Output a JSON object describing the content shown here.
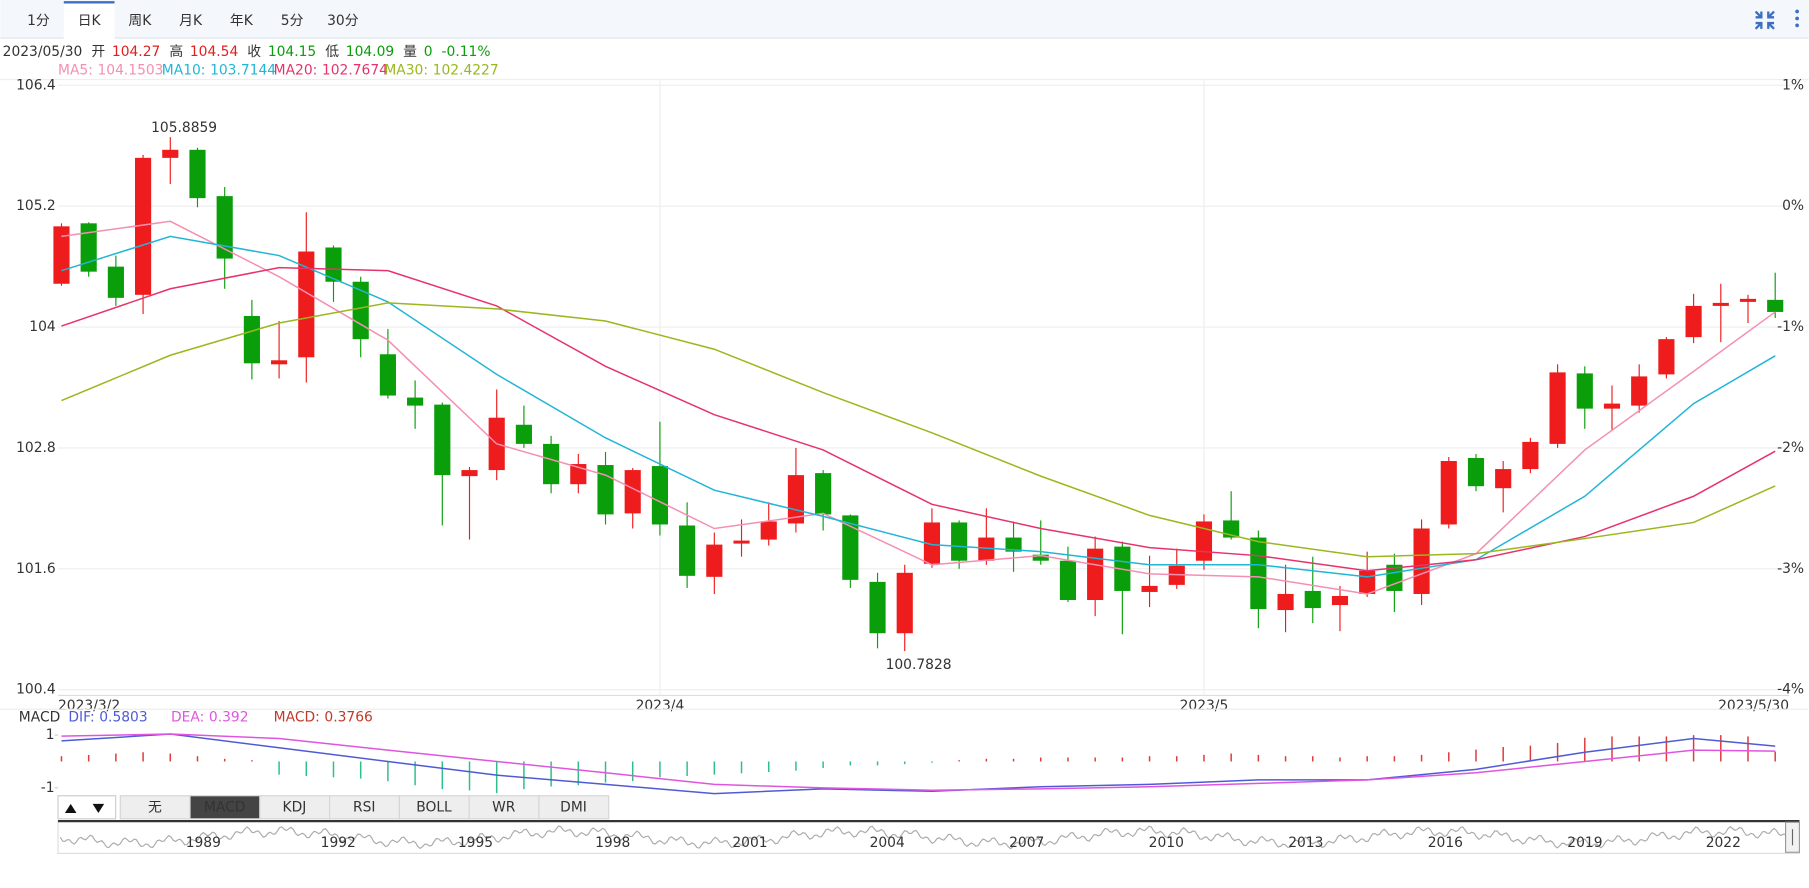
{
  "tabs": [
    "1分",
    "日K",
    "周K",
    "月K",
    "年K",
    "5分",
    "30分"
  ],
  "active_tab": 1,
  "header": {
    "date": "2023/05/30",
    "labels": [
      "开",
      "高",
      "收",
      "低",
      "量"
    ],
    "volume": 0,
    "change": "-0.11%"
  },
  "chart_data": [
    {
      "type": "candlestick",
      "categories": [
        "2023/3/2",
        null,
        null,
        null,
        null,
        null,
        null,
        null,
        null,
        null,
        null,
        null,
        null,
        null,
        null,
        null,
        null,
        null,
        null,
        null,
        null,
        null,
        "2023/4",
        null,
        null,
        null,
        null,
        null,
        null,
        null,
        null,
        null,
        null,
        null,
        null,
        null,
        null,
        null,
        null,
        null,
        null,
        null,
        "2023/5",
        null,
        null,
        null,
        null,
        null,
        null,
        null,
        null,
        null,
        null,
        null,
        null,
        null,
        null,
        null,
        null,
        null,
        null,
        null,
        null,
        "2023/5/30"
      ],
      "open": [
        104.43,
        105.03,
        104.6,
        104.32,
        105.68,
        105.76,
        105.3,
        104.11,
        103.63,
        103.7,
        104.79,
        104.45,
        103.73,
        103.3,
        103.23,
        102.52,
        102.58,
        103.03,
        102.84,
        102.44,
        102.63,
        102.15,
        102.62,
        102.03,
        101.52,
        101.85,
        101.89,
        102.05,
        102.55,
        102.13,
        101.47,
        100.96,
        101.65,
        102.06,
        101.68,
        101.91,
        101.74,
        101.68,
        101.29,
        101.82,
        101.37,
        101.44,
        101.68,
        102.08,
        101.91,
        101.19,
        101.38,
        101.24,
        101.35,
        101.64,
        101.35,
        102.04,
        102.7,
        102.4,
        102.59,
        102.84,
        103.54,
        103.19,
        103.22,
        103.53,
        103.9,
        104.21,
        104.25,
        104.27
      ],
      "high": [
        105.03,
        105.04,
        104.71,
        105.71,
        105.8859,
        105.78,
        105.39,
        104.27,
        104.06,
        105.14,
        104.81,
        104.5,
        103.98,
        103.47,
        103.25,
        102.61,
        103.38,
        103.22,
        102.92,
        102.74,
        102.76,
        102.6,
        103.06,
        102.26,
        101.96,
        102.09,
        102.26,
        102.8,
        102.58,
        102.14,
        101.56,
        101.64,
        102.2,
        102.08,
        102.2,
        102.07,
        102.08,
        101.82,
        101.92,
        101.87,
        101.73,
        101.8,
        102.14,
        102.37,
        101.98,
        101.64,
        101.72,
        101.43,
        101.77,
        101.75,
        102.09,
        102.71,
        102.74,
        102.67,
        102.9,
        103.63,
        103.61,
        103.42,
        103.63,
        103.9,
        104.33,
        104.43,
        104.32,
        104.54
      ],
      "low": [
        104.41,
        104.5,
        104.21,
        104.13,
        105.42,
        105.19,
        104.38,
        103.48,
        103.49,
        103.45,
        104.25,
        103.7,
        103.29,
        102.99,
        102.03,
        101.89,
        102.48,
        102.8,
        102.35,
        102.35,
        102.04,
        102.0,
        101.93,
        101.41,
        101.35,
        101.72,
        101.83,
        101.96,
        101.98,
        101.41,
        100.81,
        100.7828,
        101.61,
        101.6,
        101.64,
        101.57,
        101.64,
        101.27,
        101.13,
        100.95,
        101.22,
        101.4,
        101.59,
        101.89,
        101.01,
        100.97,
        101.06,
        100.98,
        101.32,
        101.17,
        101.24,
        102.0,
        102.37,
        102.16,
        102.55,
        102.8,
        102.99,
        102.97,
        103.15,
        103.49,
        103.84,
        103.85,
        104.04,
        104.09
      ],
      "close": [
        105.0,
        104.55,
        104.29,
        105.68,
        105.76,
        105.28,
        104.68,
        103.64,
        103.67,
        104.75,
        104.45,
        103.88,
        103.32,
        103.22,
        102.53,
        102.58,
        103.1,
        102.84,
        102.44,
        102.64,
        102.14,
        102.58,
        102.04,
        101.53,
        101.84,
        101.88,
        102.07,
        102.53,
        102.14,
        101.49,
        100.96,
        101.56,
        102.06,
        101.68,
        101.91,
        101.77,
        101.68,
        101.29,
        101.8,
        101.38,
        101.43,
        101.63,
        102.07,
        101.91,
        101.2,
        101.35,
        101.21,
        101.33,
        101.58,
        101.38,
        102.0,
        102.67,
        102.42,
        102.59,
        102.86,
        103.55,
        103.19,
        103.24,
        103.51,
        103.88,
        104.21,
        104.24,
        104.28,
        104.15
      ],
      "up_color": "#ee1c1c",
      "down_color": "#0a9e0a",
      "series": [
        {
          "name": "MA5:",
          "color": "#f48fb1",
          "x": [
            0,
            4,
            8,
            12,
            16,
            20,
            24,
            28,
            32,
            36,
            40,
            44,
            48,
            52,
            56,
            60,
            63
          ],
          "values": [
            104.9,
            105.05,
            104.5,
            103.87,
            102.84,
            102.53,
            102.0,
            102.15,
            101.64,
            101.73,
            101.55,
            101.52,
            101.35,
            101.75,
            102.78,
            103.56,
            104.1503
          ]
        },
        {
          "name": "MA10:",
          "color": "#22b5d6",
          "x": [
            0,
            4,
            8,
            12,
            16,
            20,
            24,
            28,
            32,
            36,
            40,
            44,
            48,
            52,
            56,
            60,
            63
          ],
          "values": [
            104.56,
            104.9,
            104.71,
            104.25,
            103.53,
            102.9,
            102.38,
            102.12,
            101.84,
            101.77,
            101.64,
            101.64,
            101.52,
            101.69,
            102.32,
            103.24,
            103.7144
          ]
        },
        {
          "name": "MA20:",
          "color": "#e6336b",
          "x": [
            0,
            4,
            8,
            12,
            16,
            20,
            24,
            28,
            32,
            36,
            40,
            44,
            48,
            52,
            56,
            60,
            63
          ],
          "values": [
            104.01,
            104.38,
            104.59,
            104.56,
            104.21,
            103.61,
            103.13,
            102.78,
            102.24,
            102.0,
            101.81,
            101.73,
            101.58,
            101.69,
            101.92,
            102.32,
            102.7674
          ]
        },
        {
          "name": "MA30:",
          "color": "#99b81d",
          "x": [
            0,
            4,
            8,
            12,
            16,
            20,
            24,
            28,
            32,
            36,
            40,
            44,
            48,
            52,
            56,
            60,
            63
          ],
          "values": [
            103.27,
            103.72,
            104.04,
            104.24,
            104.18,
            104.06,
            103.78,
            103.35,
            102.95,
            102.52,
            102.13,
            101.87,
            101.72,
            101.75,
            101.9,
            102.06,
            102.4227
          ]
        }
      ],
      "ylim": [
        100.4,
        106.4
      ],
      "yticks": [
        100.4,
        101.6,
        102.8,
        104,
        105.2,
        106.4
      ],
      "y2lim": [
        -4,
        1
      ],
      "y2ticks": [
        {
          "value": 1,
          "label": "1%"
        },
        {
          "value": 0,
          "label": "0%"
        },
        {
          "value": -1,
          "label": "-1%"
        },
        {
          "value": -2,
          "label": "-2%"
        },
        {
          "value": -3,
          "label": "-3%"
        },
        {
          "value": -4,
          "label": "-4%"
        }
      ],
      "grid": true
    },
    {
      "type": "macd",
      "title": "MACD",
      "ylim": [
        -1.3,
        1.5
      ],
      "yticks": [
        1,
        -1
      ],
      "series": [
        {
          "name": "DIF:",
          "color": "#4f5bd5",
          "x": [
            0,
            4,
            8,
            12,
            16,
            20,
            24,
            28,
            32,
            36,
            40,
            44,
            48,
            52,
            56,
            60,
            63
          ],
          "values": [
            0.78,
            1.04,
            0.52,
            0,
            -0.52,
            -0.87,
            -1.22,
            -1.04,
            -1.13,
            -0.96,
            -0.87,
            -0.7,
            -0.7,
            -0.3,
            0.35,
            0.87,
            0.5803
          ]
        },
        {
          "name": "DEA:",
          "color": "#e055e0",
          "x": [
            0,
            4,
            8,
            12,
            16,
            20,
            24,
            28,
            32,
            36,
            40,
            44,
            48,
            52,
            56,
            60,
            63
          ],
          "values": [
            0.96,
            1.04,
            0.87,
            0.43,
            0,
            -0.43,
            -0.87,
            -1.0,
            -1.09,
            -1.04,
            -0.96,
            -0.83,
            -0.7,
            -0.43,
            0,
            0.43,
            0.392
          ]
        },
        {
          "name": "MACD:",
          "color": "#c0392b",
          "up_color": "#e03b3b",
          "down_color": "#2fc08a",
          "values": [
            0.2,
            0.25,
            0.3,
            0.35,
            0.3,
            0.2,
            0.1,
            0.05,
            -0.5,
            -0.55,
            -0.6,
            -0.65,
            -0.75,
            -0.9,
            -1.05,
            -1.1,
            -1.2,
            -1.05,
            -0.95,
            -0.9,
            -0.8,
            -0.75,
            -0.6,
            -0.55,
            -0.5,
            -0.45,
            -0.4,
            -0.35,
            -0.25,
            -0.15,
            -0.15,
            -0.1,
            -0.05,
            0.05,
            0.1,
            0.1,
            0.15,
            0.15,
            0.15,
            0.15,
            0.2,
            0.2,
            0.25,
            0.3,
            0.25,
            0.2,
            0.2,
            0.15,
            0.2,
            0.2,
            0.25,
            0.35,
            0.45,
            0.55,
            0.6,
            0.7,
            0.9,
            0.95,
            0.95,
            0.95,
            1.0,
            1.0,
            0.95,
            0.3766
          ]
        }
      ]
    }
  ],
  "indicator_tabs": [
    "无",
    "MACD",
    "KDJ",
    "RSI",
    "BOLL",
    "WR",
    "DMI"
  ],
  "active_indicator": 1,
  "navigator": {
    "labels": [
      "1989",
      "1992",
      "1995",
      "1998",
      "2001",
      "2004",
      "2007",
      "2010",
      "2013",
      "2016",
      "2019",
      "2022"
    ]
  }
}
